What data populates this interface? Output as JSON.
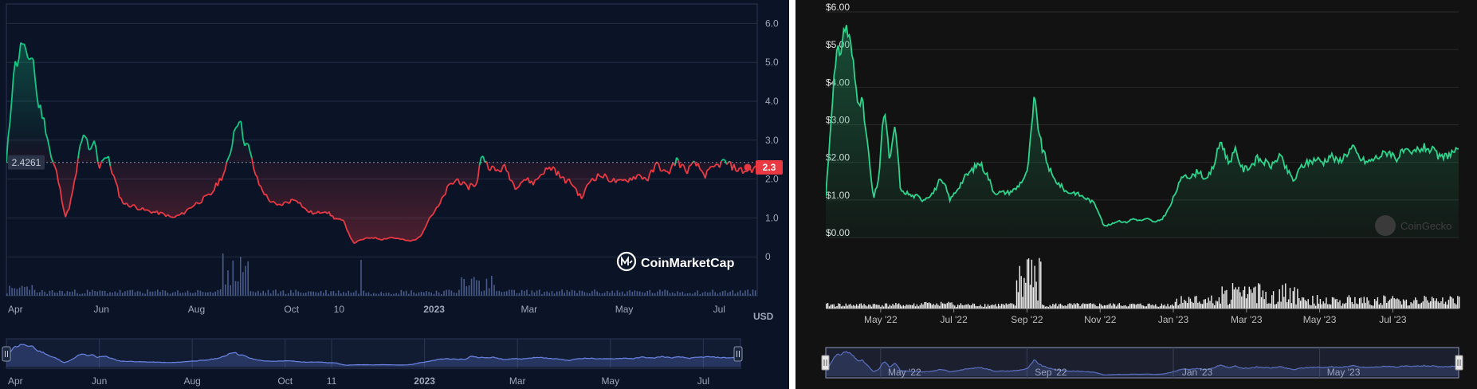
{
  "chart_data": [
    {
      "type": "line",
      "source": "CoinMarketCap",
      "watermark": "CoinMarketCap",
      "title": "",
      "ylabel": "",
      "currency_label": "USD",
      "ylim": [
        -1.0,
        6.5
      ],
      "y_ticks": [
        0,
        1.0,
        2.0,
        3.0,
        4.0,
        5.0,
        6.0
      ],
      "y_tick_labels": [
        "0",
        "1.0",
        "2.0",
        "3.0",
        "4.0",
        "5.0",
        "6.0"
      ],
      "x_tick_labels": [
        "Apr",
        "Jun",
        "Aug",
        "Oct",
        "10",
        "2023",
        "Mar",
        "May",
        "Jul"
      ],
      "x_tick_positions": [
        0,
        2,
        4,
        6,
        7,
        9,
        11,
        13,
        15
      ],
      "navigator_tick_labels": [
        "Apr",
        "Jun",
        "Aug",
        "Oct",
        "11",
        "2023",
        "Mar",
        "May",
        "Jul"
      ],
      "reference_price": 2.4261,
      "reference_label": "2.4261",
      "current_price": 2.3,
      "current_label": "2.3",
      "colors": {
        "above": "#16c784",
        "below": "#ea3943",
        "volume": "#4a5a8a",
        "navigator": "#6b85e6"
      },
      "series": [
        {
          "x_months": [
            0,
            0.08,
            0.15,
            0.25,
            0.35,
            0.45,
            0.55,
            0.65,
            0.75,
            0.85,
            0.95,
            1.05,
            1.15,
            1.25,
            1.35,
            1.45,
            1.55,
            1.65,
            1.75,
            1.85,
            1.95,
            2.05,
            2.15,
            2.25,
            2.4,
            2.5,
            2.7,
            2.9,
            3.1,
            3.3,
            3.5,
            3.7,
            3.9,
            4.1,
            4.3,
            4.45,
            4.6,
            4.7,
            4.8,
            4.9,
            5.0,
            5.1,
            5.2,
            5.3,
            5.5,
            5.7,
            5.9,
            6.1,
            6.3,
            6.5,
            6.7,
            6.9,
            7.1,
            7.3,
            7.5,
            7.7,
            7.9,
            8.1,
            8.3,
            8.5,
            8.7,
            8.9,
            9.1,
            9.3,
            9.5,
            9.7,
            9.8,
            9.9,
            10.0,
            10.1,
            10.3,
            10.5,
            10.7,
            10.9,
            11.1,
            11.3,
            11.5,
            11.7,
            11.9,
            12.1,
            12.3,
            12.5,
            12.7,
            12.9,
            13.1,
            13.3,
            13.5,
            13.7,
            13.9,
            14.1,
            14.3,
            14.5,
            14.7,
            14.9,
            15.1,
            15.3,
            15.5,
            15.7,
            15.8
          ],
          "values": [
            2.4,
            3.6,
            4.8,
            5.1,
            5.6,
            4.9,
            5.3,
            4.0,
            3.7,
            3.2,
            2.5,
            2.2,
            1.6,
            1.0,
            1.4,
            2.0,
            2.8,
            3.2,
            2.6,
            3.0,
            2.3,
            2.6,
            2.5,
            2.1,
            1.5,
            1.35,
            1.3,
            1.2,
            1.15,
            1.1,
            1.0,
            1.1,
            1.3,
            1.45,
            1.6,
            1.9,
            2.2,
            2.6,
            3.3,
            3.6,
            3.0,
            2.8,
            2.3,
            1.9,
            1.5,
            1.3,
            1.4,
            1.5,
            1.2,
            1.1,
            1.2,
            1.0,
            0.9,
            0.35,
            0.45,
            0.5,
            0.45,
            0.5,
            0.45,
            0.4,
            0.5,
            1.0,
            1.3,
            1.8,
            2.0,
            1.75,
            1.9,
            1.8,
            2.7,
            2.4,
            2.2,
            2.3,
            1.8,
            2.0,
            1.9,
            2.2,
            2.3,
            2.0,
            1.9,
            1.5,
            2.0,
            2.1,
            2.0,
            1.9,
            2.0,
            2.1,
            2.0,
            2.4,
            2.1,
            2.5,
            2.2,
            2.4,
            2.1,
            2.3,
            2.45,
            2.3,
            2.2,
            2.25,
            2.3
          ]
        }
      ]
    },
    {
      "type": "area",
      "source": "CoinGecko",
      "watermark": "CoinGecko",
      "title": "",
      "ylabel": "",
      "ylim": [
        0,
        6.0
      ],
      "y_ticks": [
        0,
        1,
        2,
        3,
        4,
        5,
        6
      ],
      "y_tick_labels": [
        "$0.00",
        "$1.00",
        "$2.00",
        "$3.00",
        "$4.00",
        "$5.00",
        "$6.00"
      ],
      "x_tick_labels": [
        "May '22",
        "Jul '22",
        "Sep '22",
        "Nov '22",
        "Jan '23",
        "Mar '23",
        "May '23",
        "Jul '23"
      ],
      "x_tick_positions": [
        1.5,
        3.5,
        5.5,
        7.5,
        9.5,
        11.5,
        13.5,
        15.5
      ],
      "navigator_tick_labels": [
        "May '22",
        "Sep '22",
        "Jan '23",
        "May '23"
      ],
      "navigator_tick_positions": [
        1.5,
        5.5,
        9.5,
        13.5
      ],
      "colors": {
        "line": "#2fd38c",
        "volume": "#f0f0f0",
        "navigator": "#5b6fbf"
      },
      "series": [
        {
          "x_months": [
            0,
            0.1,
            0.2,
            0.3,
            0.4,
            0.55,
            0.7,
            0.85,
            1.0,
            1.15,
            1.3,
            1.45,
            1.6,
            1.75,
            1.9,
            2.05,
            2.2,
            2.35,
            2.5,
            2.65,
            2.8,
            2.95,
            3.1,
            3.25,
            3.4,
            3.6,
            3.8,
            4.0,
            4.2,
            4.4,
            4.6,
            4.8,
            5.0,
            5.2,
            5.35,
            5.5,
            5.6,
            5.7,
            5.8,
            5.9,
            6.05,
            6.2,
            6.4,
            6.6,
            6.8,
            7.0,
            7.2,
            7.35,
            7.5,
            7.6,
            7.8,
            8.0,
            8.2,
            8.4,
            8.6,
            8.8,
            9.0,
            9.2,
            9.4,
            9.6,
            9.8,
            10.0,
            10.2,
            10.4,
            10.6,
            10.8,
            11.0,
            11.2,
            11.4,
            11.6,
            11.8,
            12.0,
            12.2,
            12.4,
            12.6,
            12.8,
            13.0,
            13.2,
            13.4,
            13.6,
            13.8,
            14.0,
            14.2,
            14.4,
            14.6,
            14.8,
            15.0,
            15.2,
            15.4,
            15.6,
            15.8,
            16.0,
            16.2,
            16.4,
            16.6,
            16.8,
            17.0,
            17.2,
            17.3
          ],
          "values": [
            1.1,
            2.5,
            4.0,
            4.8,
            5.0,
            5.7,
            5.0,
            3.8,
            3.6,
            2.4,
            1.0,
            1.6,
            3.5,
            2.0,
            3.0,
            1.2,
            1.2,
            1.1,
            1.1,
            1.0,
            1.1,
            1.2,
            1.5,
            1.4,
            1.0,
            1.3,
            1.6,
            1.8,
            2.0,
            1.7,
            1.2,
            1.2,
            1.2,
            1.3,
            1.5,
            1.7,
            2.6,
            3.7,
            3.0,
            2.4,
            2.0,
            1.6,
            1.4,
            1.2,
            1.2,
            1.1,
            1.0,
            0.9,
            0.6,
            0.3,
            0.35,
            0.45,
            0.4,
            0.5,
            0.45,
            0.5,
            0.4,
            0.5,
            0.8,
            1.3,
            1.7,
            1.6,
            1.8,
            1.5,
            1.9,
            2.6,
            2.0,
            2.3,
            1.8,
            1.9,
            2.1,
            2.0,
            1.9,
            2.2,
            1.8,
            1.5,
            1.9,
            2.0,
            2.1,
            2.0,
            2.2,
            2.0,
            2.2,
            2.4,
            2.1,
            2.0,
            2.1,
            2.2,
            2.3,
            2.1,
            2.3,
            2.2,
            2.35,
            2.4,
            2.3,
            2.1,
            2.2,
            2.3,
            2.25
          ]
        }
      ]
    }
  ]
}
